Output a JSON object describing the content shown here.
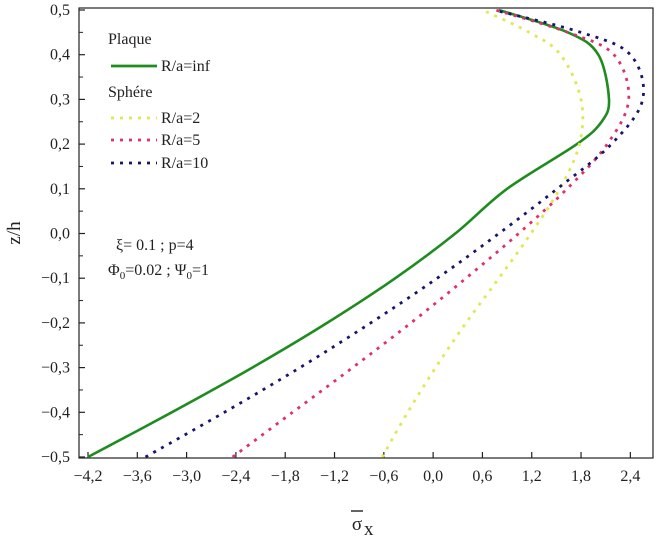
{
  "chart_data": {
    "type": "line",
    "xlabel": "σx",
    "ylabel": "z/h",
    "xlim": [
      -4.2,
      2.7
    ],
    "ylim": [
      -0.5,
      0.5
    ],
    "xticks": [
      "−4,2",
      "−3,6",
      "−3,0",
      "−2,4",
      "−1,8",
      "−1,2",
      "−0,6",
      "0,0",
      "0,6",
      "1,2",
      "1,8",
      "2,4"
    ],
    "xtick_values": [
      -4.2,
      -3.6,
      -3.0,
      -2.4,
      -1.8,
      -1.2,
      -0.6,
      0.0,
      0.6,
      1.2,
      1.8,
      2.4
    ],
    "yticks": [
      "0,5",
      "0,4",
      "0,3",
      "0,2",
      "0,1",
      "0,0",
      "−0,1",
      "−0,2",
      "−0,3",
      "−0,4",
      "−0,5"
    ],
    "ytick_values": [
      0.5,
      0.4,
      0.3,
      0.2,
      0.1,
      0.0,
      -0.1,
      -0.2,
      -0.3,
      -0.4,
      -0.5
    ],
    "legend": {
      "group1_title": "Plaque",
      "group2_title": "Sphére",
      "placement": "top-left"
    },
    "annotations": {
      "line1": "ξ= 0.1 ; p=4",
      "line2_phi": "Φ",
      "line2_phi_sub": "0",
      "line2_mid": "=0.02 ; Ψ",
      "line2_psi_sub": "0",
      "line2_end": "=1"
    },
    "series": [
      {
        "name": "R/a=inf",
        "style": "solid",
        "color": "#1e8c1e",
        "points": [
          [
            -4.2,
            -0.5
          ],
          [
            -3.18,
            -0.4
          ],
          [
            -2.2,
            -0.3
          ],
          [
            -1.29,
            -0.2
          ],
          [
            -0.46,
            -0.1
          ],
          [
            0.27,
            0.0
          ],
          [
            0.9,
            0.1
          ],
          [
            1.75,
            0.2
          ],
          [
            2.05,
            0.25
          ],
          [
            2.14,
            0.3
          ],
          [
            2.01,
            0.4
          ],
          [
            1.64,
            0.45
          ],
          [
            0.8,
            0.5
          ]
        ]
      },
      {
        "name": "R/a=2",
        "style": "dotted",
        "color": "#e0e84e",
        "points": [
          [
            -0.62,
            -0.5
          ],
          [
            -0.31,
            -0.4
          ],
          [
            0.03,
            -0.3
          ],
          [
            0.4,
            -0.2
          ],
          [
            0.8,
            -0.1
          ],
          [
            1.19,
            0.0
          ],
          [
            1.54,
            0.1
          ],
          [
            1.78,
            0.2
          ],
          [
            1.8,
            0.3
          ],
          [
            1.55,
            0.4
          ],
          [
            1.17,
            0.45
          ],
          [
            0.6,
            0.5
          ]
        ]
      },
      {
        "name": "R/a=5",
        "style": "dotted",
        "color": "#e0306a",
        "points": [
          [
            -2.44,
            -0.5
          ],
          [
            -1.71,
            -0.4
          ],
          [
            -0.98,
            -0.3
          ],
          [
            -0.27,
            -0.2
          ],
          [
            0.4,
            -0.1
          ],
          [
            1.04,
            0.0
          ],
          [
            1.63,
            0.1
          ],
          [
            2.12,
            0.2
          ],
          [
            2.38,
            0.3
          ],
          [
            2.2,
            0.4
          ],
          [
            1.64,
            0.45
          ],
          [
            0.76,
            0.5
          ]
        ]
      },
      {
        "name": "R/a=10",
        "style": "dotted",
        "color": "#16166e",
        "points": [
          [
            -3.5,
            -0.5
          ],
          [
            -2.54,
            -0.4
          ],
          [
            -1.62,
            -0.3
          ],
          [
            -0.76,
            -0.2
          ],
          [
            0.05,
            -0.1
          ],
          [
            0.8,
            0.0
          ],
          [
            1.51,
            0.1
          ],
          [
            2.17,
            0.2
          ],
          [
            2.55,
            0.3
          ],
          [
            2.4,
            0.4
          ],
          [
            1.8,
            0.45
          ],
          [
            0.74,
            0.5
          ]
        ]
      }
    ]
  }
}
